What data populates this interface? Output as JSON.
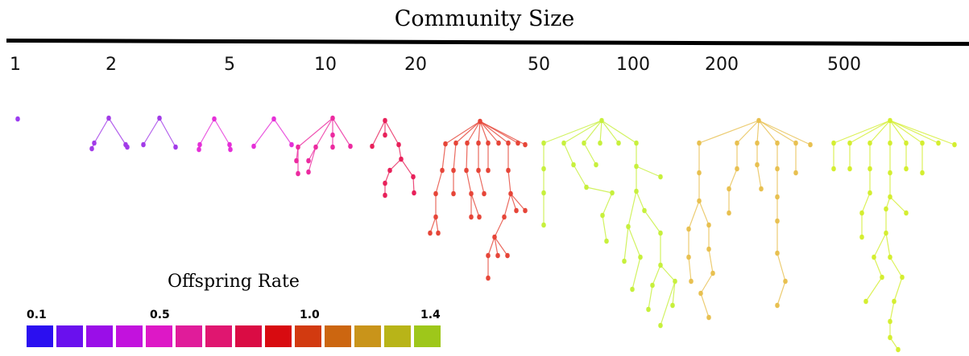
{
  "header": {
    "title": "Community Size"
  },
  "community_sizes": [
    "1",
    "2",
    "5",
    "10",
    "20",
    "50",
    "100",
    "200",
    "500"
  ],
  "legend": {
    "title": "Offspring Rate",
    "ticks": [
      "0.1",
      "0.5",
      "1.0",
      "1.4"
    ],
    "swatch_colors": [
      "#2b0ff0",
      "#6a10ee",
      "#9a0ee8",
      "#c212dd",
      "#dd18c6",
      "#e01c9a",
      "#e01670",
      "#da0c44",
      "#d80b10",
      "#d23a10",
      "#cc6610",
      "#c9941a",
      "#b8b418",
      "#9ec71a"
    ]
  },
  "trees": [
    {
      "community": "1",
      "color": "#9b3cf0"
    },
    {
      "community": "2",
      "color": "#a23be8"
    },
    {
      "community": "5",
      "color": "#e530d8"
    },
    {
      "community": "10",
      "color": "#ec2aa0"
    },
    {
      "community": "20",
      "color": "#e8205a"
    },
    {
      "community": "50",
      "color": "#e64538"
    },
    {
      "community": "100",
      "color": "#c7f03c"
    },
    {
      "community": "200",
      "color": "#e8c050"
    },
    {
      "community": "500",
      "color": "#d4ee30"
    }
  ]
}
